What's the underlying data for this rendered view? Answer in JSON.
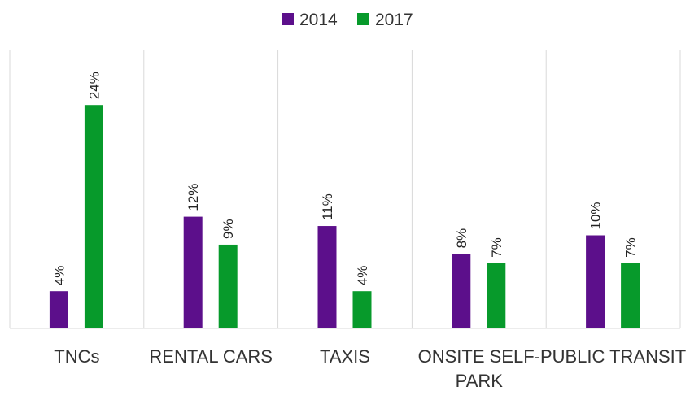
{
  "chart_data": {
    "type": "bar",
    "title": "",
    "xlabel": "",
    "ylabel": "",
    "ylim": [
      0,
      30
    ],
    "grid": false,
    "legend_position": "top-center",
    "categories": [
      "TNCs",
      "RENTAL CARS",
      "TAXIS",
      "ONSITE SELF-PARK",
      "PUBLIC TRANSIT"
    ],
    "series": [
      {
        "name": "2014",
        "color": "#5c0f8b",
        "values": [
          4,
          12,
          11,
          8,
          10
        ],
        "labels": [
          "4%",
          "12%",
          "11%",
          "8%",
          "10%"
        ]
      },
      {
        "name": "2017",
        "color": "#079a2b",
        "values": [
          24,
          9,
          4,
          7,
          7
        ],
        "labels": [
          "24%",
          "9%",
          "4%",
          "7%",
          "7%"
        ]
      }
    ]
  }
}
